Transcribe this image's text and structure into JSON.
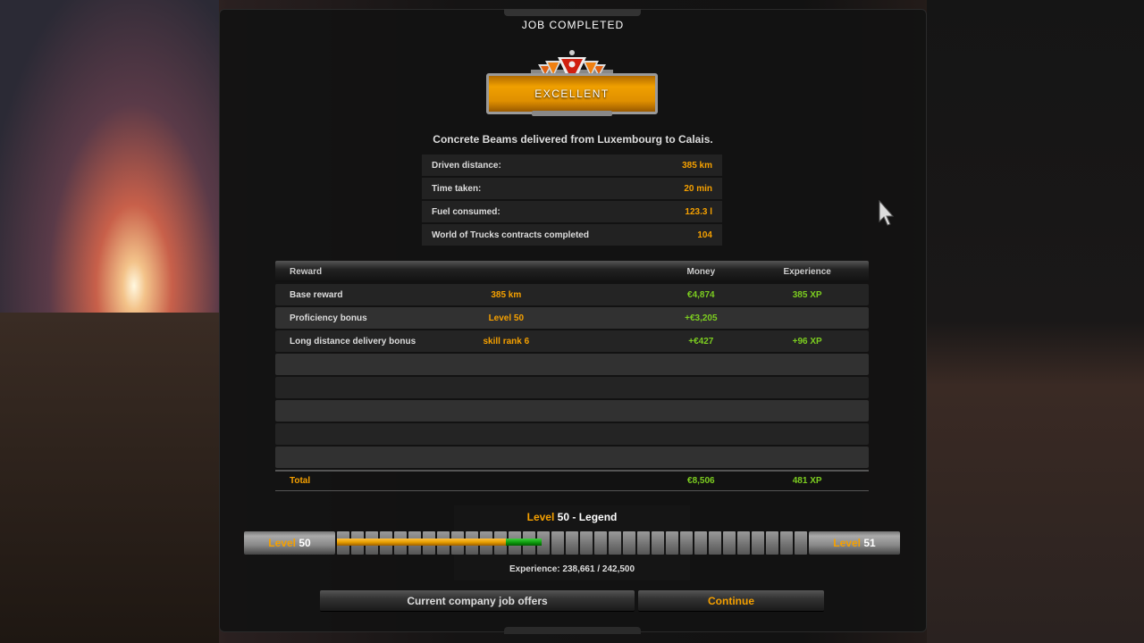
{
  "title": "JOB COMPLETED",
  "rating": "EXCELLENT",
  "summary": "Concrete Beams delivered from Luxembourg to Calais.",
  "stats": [
    {
      "label": "Driven distance:",
      "value": "385 km"
    },
    {
      "label": "Time taken:",
      "value": "20 min"
    },
    {
      "label": "Fuel consumed:",
      "value": "123.3 l"
    },
    {
      "label": "World of Trucks contracts completed",
      "value": "104"
    }
  ],
  "rewards": {
    "headers": {
      "reward": "Reward",
      "money": "Money",
      "experience": "Experience"
    },
    "rows": [
      {
        "name": "Base reward",
        "detail": "385 km",
        "money": "€4,874",
        "xp": "385 XP"
      },
      {
        "name": "Proficiency bonus",
        "detail": "Level 50",
        "money": "+€3,205",
        "xp": ""
      },
      {
        "name": "Long distance delivery bonus",
        "detail": "skill rank 6",
        "money": "+€427",
        "xp": "+96 XP"
      }
    ],
    "total": {
      "label": "Total",
      "money": "€8,506",
      "xp": "481 XP"
    }
  },
  "level": {
    "word": "Level",
    "current": "50",
    "title_suffix": "- Legend",
    "next": "51",
    "experience": "Experience: 238,661 / 242,500",
    "previous_progress": 0.36,
    "progress": 0.435,
    "colors": {
      "previous": "#e8a000",
      "gained": "#10a010"
    }
  },
  "buttons": {
    "offers": "Current company job offers",
    "continue": "Continue"
  }
}
